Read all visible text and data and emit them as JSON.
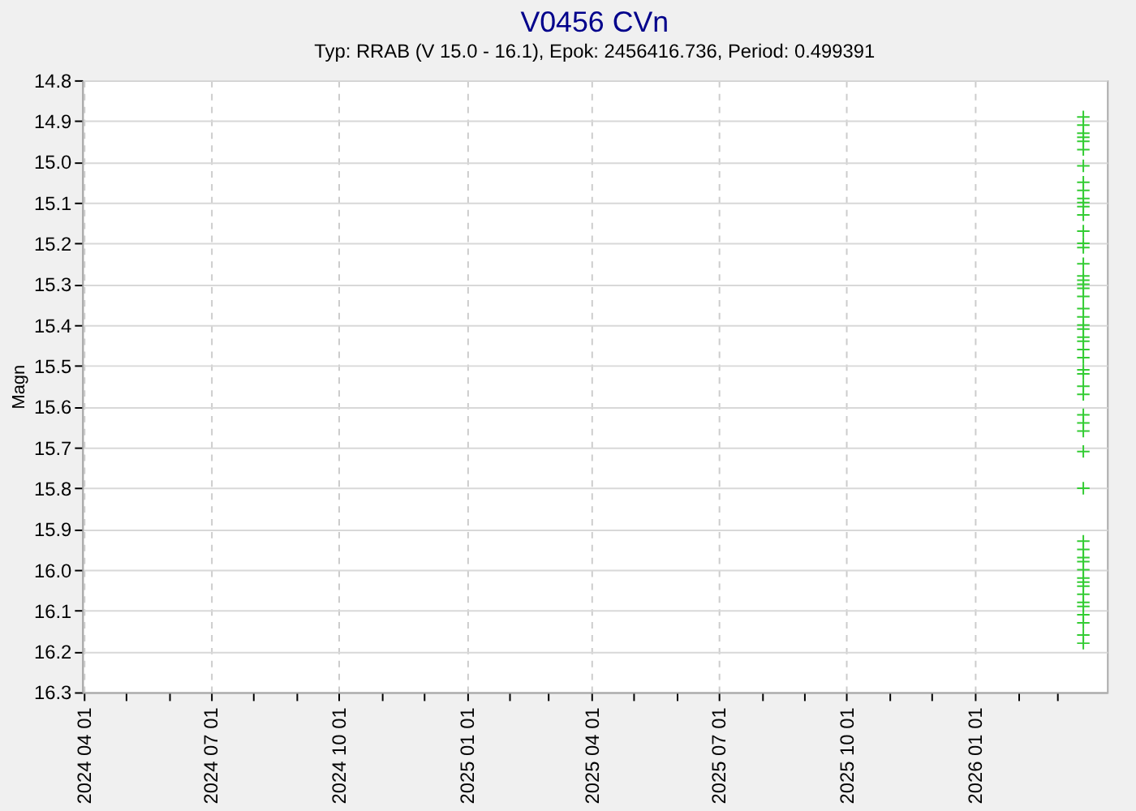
{
  "chart_data": {
    "type": "scatter",
    "title": "V0456 CVn",
    "subtitle": "Typ: RRAB (V 15.0 - 16.1), Epok: 2456416.736, Period: 0.499391",
    "ylabel": "Magn",
    "x": [
      "2026-03-20",
      "2026-03-20",
      "2026-03-20",
      "2026-03-20",
      "2026-03-20",
      "2026-03-20",
      "2026-03-20",
      "2026-03-20",
      "2026-03-20",
      "2026-03-20",
      "2026-03-20",
      "2026-03-20",
      "2026-03-20",
      "2026-03-20",
      "2026-03-20",
      "2026-03-20",
      "2026-03-20",
      "2026-03-20",
      "2026-03-20",
      "2026-03-20",
      "2026-03-20",
      "2026-03-20",
      "2026-03-20",
      "2026-03-20",
      "2026-03-20",
      "2026-03-20",
      "2026-03-20",
      "2026-03-20",
      "2026-03-20",
      "2026-03-20",
      "2026-03-20",
      "2026-03-20",
      "2026-03-20",
      "2026-03-20",
      "2026-03-20",
      "2026-03-20",
      "2026-03-20",
      "2026-03-20",
      "2026-03-20",
      "2026-03-20",
      "2026-03-20",
      "2026-03-20",
      "2026-03-20",
      "2026-03-20",
      "2026-03-20",
      "2026-03-20",
      "2026-03-20",
      "2026-03-20",
      "2026-03-20",
      "2026-03-20",
      "2026-03-20",
      "2026-03-20",
      "2026-03-20",
      "2026-03-20"
    ],
    "series": [
      {
        "color": "#33cc33",
        "values": [
          14.89,
          14.91,
          14.93,
          14.94,
          14.95,
          14.97,
          15.01,
          15.05,
          15.07,
          15.09,
          15.1,
          15.11,
          15.13,
          15.17,
          15.2,
          15.21,
          15.25,
          15.28,
          15.29,
          15.3,
          15.31,
          15.33,
          15.36,
          15.38,
          15.4,
          15.41,
          15.43,
          15.44,
          15.46,
          15.48,
          15.51,
          15.52,
          15.55,
          15.57,
          15.62,
          15.64,
          15.66,
          15.71,
          15.8,
          15.93,
          15.95,
          15.97,
          15.98,
          16.0,
          16.02,
          16.03,
          16.04,
          16.06,
          16.08,
          16.09,
          16.11,
          16.13,
          16.16,
          16.18
        ]
      }
    ],
    "marker": "cross",
    "grid": true,
    "legend": false,
    "ylim": [
      16.3,
      14.8
    ],
    "yticks": [
      14.8,
      14.9,
      {
        "value": 15,
        "label": "15.0"
      },
      15.1,
      15.2,
      15.3,
      15.4,
      15.5,
      15.6,
      15.7,
      15.8,
      15.9,
      {
        "value": 16,
        "label": "16.0"
      },
      16.1,
      16.2,
      16.3
    ],
    "xlim": [
      "2024-03-31",
      "2026-04-06"
    ],
    "xticks": [
      {
        "value": "2024-04-01",
        "label": "2024 04 01"
      },
      {
        "value": "2024-05-01",
        "label": null
      },
      {
        "value": "2024-06-01",
        "label": null
      },
      {
        "value": "2024-07-01",
        "label": "2024 07 01"
      },
      {
        "value": "2024-08-01",
        "label": null
      },
      {
        "value": "2024-09-01",
        "label": null
      },
      {
        "value": "2024-10-01",
        "label": "2024 10 01"
      },
      {
        "value": "2024-11-01",
        "label": null
      },
      {
        "value": "2024-12-01",
        "label": null
      },
      {
        "value": "2025-01-01",
        "label": "2025 01 01"
      },
      {
        "value": "2025-02-01",
        "label": null
      },
      {
        "value": "2025-03-01",
        "label": null
      },
      {
        "value": "2025-04-01",
        "label": "2025 04 01"
      },
      {
        "value": "2025-05-01",
        "label": null
      },
      {
        "value": "2025-06-01",
        "label": null
      },
      {
        "value": "2025-07-01",
        "label": "2025 07 01"
      },
      {
        "value": "2025-08-01",
        "label": null
      },
      {
        "value": "2025-09-01",
        "label": null
      },
      {
        "value": "2025-10-01",
        "label": "2025 10 01"
      },
      {
        "value": "2025-11-01",
        "label": null
      },
      {
        "value": "2025-12-01",
        "label": null
      },
      {
        "value": "2026-01-01",
        "label": "2026 01 01"
      },
      {
        "value": "2026-02-01",
        "label": null
      },
      {
        "value": "2026-03-01",
        "label": null
      }
    ]
  }
}
